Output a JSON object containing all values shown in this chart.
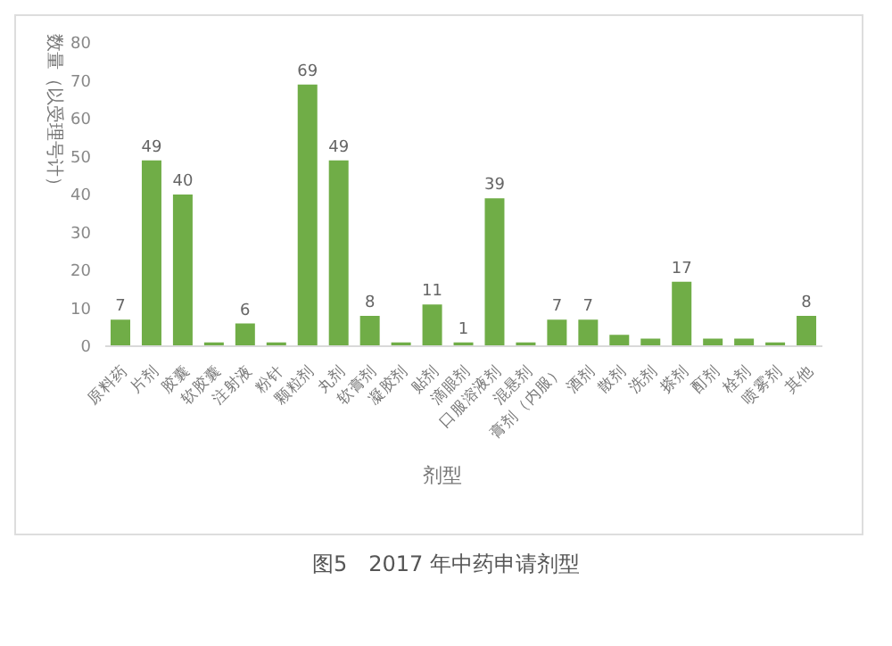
{
  "chart_data": {
    "type": "bar",
    "xlabel": "剂型",
    "ylabel": "数量（以受理号计）",
    "annotations": [
      "图5　2017 年中药申请剂型"
    ],
    "categories": [
      "原料药",
      "片剂",
      "胶囊",
      "软胶囊",
      "注射液",
      "粉针",
      "颗粒剂",
      "丸剂",
      "软膏剂",
      "凝胶剂",
      "贴剂",
      "滴眼剂",
      "口服溶液剂",
      "混悬剂",
      "膏剂（内服）",
      "酒剂",
      "散剂",
      "洗剂",
      "搽剂",
      "酊剂",
      "栓剂",
      "喷雾剂",
      "其他"
    ],
    "values": [
      7,
      49,
      40,
      1,
      6,
      1,
      69,
      49,
      8,
      1,
      11,
      1,
      39,
      1,
      7,
      7,
      3,
      2,
      17,
      2,
      2,
      1,
      8
    ],
    "value_labels": [
      "7",
      "49",
      "40",
      null,
      "6",
      null,
      "69",
      "49",
      "8",
      null,
      "11",
      "1",
      "39",
      null,
      "7",
      "7",
      null,
      null,
      "17",
      null,
      null,
      null,
      "8"
    ],
    "color": "#70ad47",
    "ylim": [
      0,
      80
    ],
    "yticks": [
      0,
      10,
      20,
      30,
      40,
      50,
      60,
      70,
      80
    ],
    "grid": false,
    "legend": false
  }
}
